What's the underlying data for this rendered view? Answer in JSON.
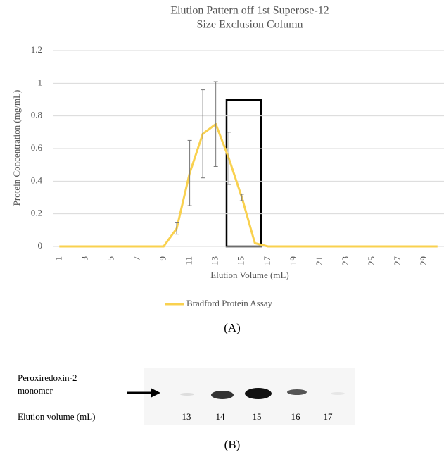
{
  "chart_data": {
    "type": "line",
    "title": [
      "Elution Pattern off 1st Superose-12",
      "Size Exclusion Column"
    ],
    "x_label": "Elution Volume (mL)",
    "y_label": "Protein Concentration (mg/mL)",
    "categories": [
      "1",
      null,
      "3",
      null,
      "5",
      null,
      "7",
      null,
      "9",
      null,
      "11",
      null,
      "13",
      null,
      "15",
      null,
      "17",
      null,
      "19",
      null,
      "21",
      null,
      "23",
      null,
      "25",
      null,
      "27",
      null,
      "29",
      null
    ],
    "series": [
      {
        "name": "Bradford Protein Assay",
        "color": "#f9d14f",
        "values": [
          0,
          0,
          0,
          0,
          0,
          0,
          0,
          0,
          0,
          0.11,
          0.45,
          0.69,
          0.75,
          0.54,
          0.3,
          0.02,
          0,
          0,
          0,
          0,
          0,
          0,
          0,
          0,
          0,
          0,
          0,
          0,
          0,
          0
        ],
        "errors": [
          0,
          0,
          0,
          0,
          0,
          0,
          0,
          0,
          0,
          0.035,
          0.2,
          0.27,
          0.26,
          0.16,
          0.02,
          0,
          0,
          0,
          0,
          0,
          0,
          0,
          0,
          0,
          0,
          0,
          0,
          0,
          0,
          0
        ]
      }
    ],
    "ylim": [
      0,
      1.2
    ],
    "yticks": [
      0,
      0.2,
      0.4,
      0.6,
      0.8,
      1,
      1.2
    ],
    "grid": true,
    "legend": "bottom",
    "caption": "(A)"
  },
  "gel": {
    "protein_label": [
      "Peroxiredoxin-2",
      "monomer"
    ],
    "lane_label": "Elution volume (mL)",
    "lanes": [
      "13",
      "14",
      "15",
      "16",
      "17"
    ],
    "caption": "(B)"
  }
}
